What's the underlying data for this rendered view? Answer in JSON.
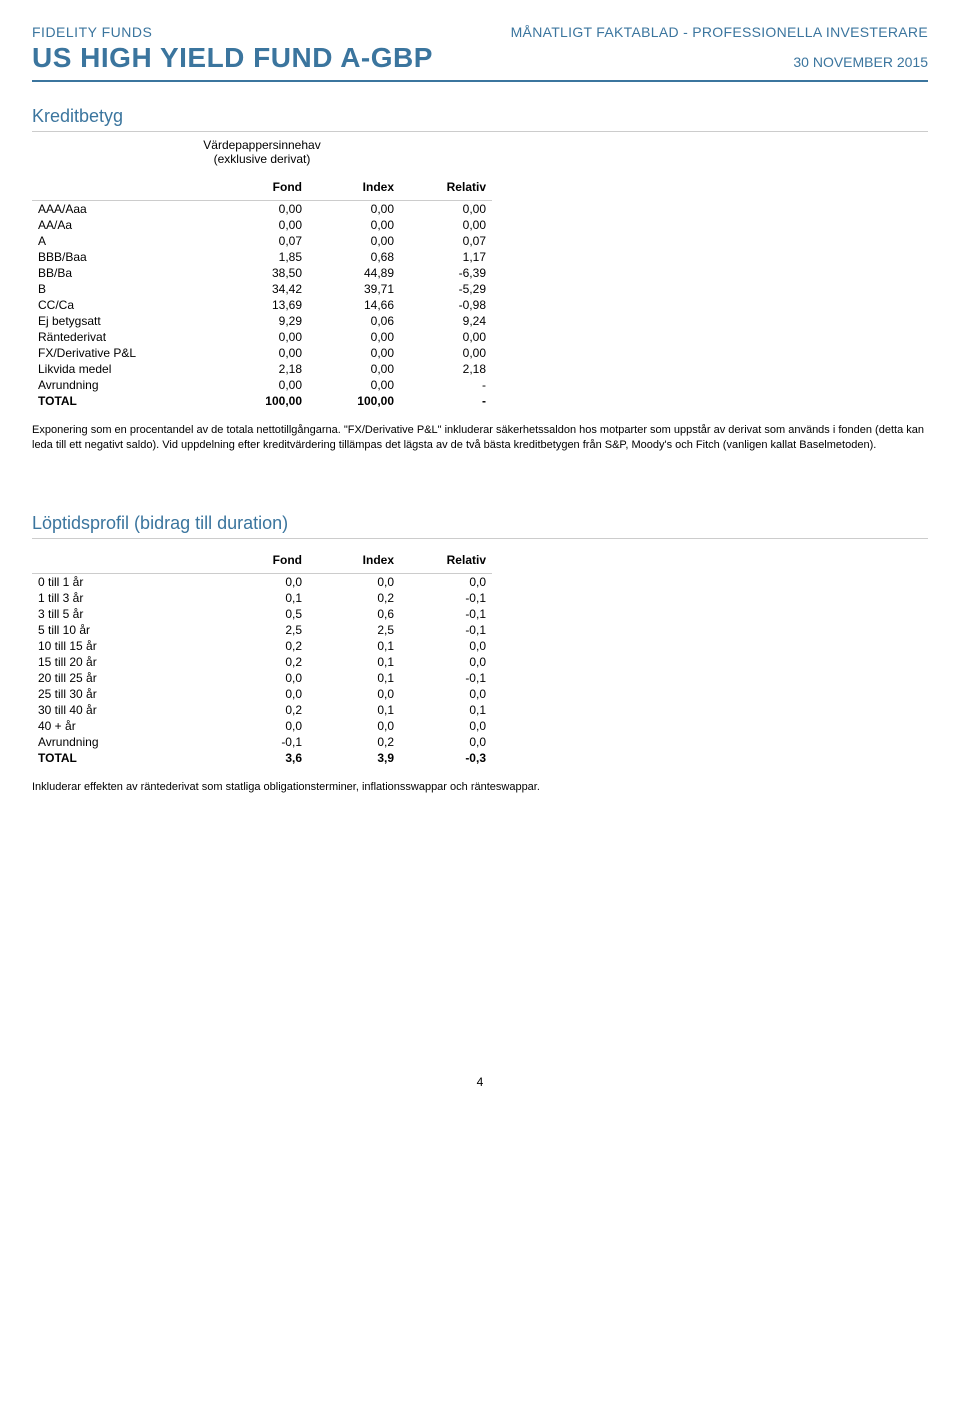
{
  "header": {
    "brand": "FIDELITY FUNDS",
    "doc_type": "MÅNATLIGT FAKTABLAD - PROFESSIONELLA INVESTERARE",
    "fund_name": "US HIGH YIELD FUND A-GBP",
    "date": "30 NOVEMBER 2015"
  },
  "credit": {
    "title": "Kreditbetyg",
    "subtitle_line1": "Värdepappersinnehav",
    "subtitle_line2": "(exklusive derivat)",
    "columns": [
      "",
      "Fond",
      "Index",
      "Relativ"
    ],
    "rows": [
      {
        "label": "AAA/Aaa",
        "fond": "0,00",
        "index": "0,00",
        "rel": "0,00"
      },
      {
        "label": "AA/Aa",
        "fond": "0,00",
        "index": "0,00",
        "rel": "0,00"
      },
      {
        "label": "A",
        "fond": "0,07",
        "index": "0,00",
        "rel": "0,07"
      },
      {
        "label": "BBB/Baa",
        "fond": "1,85",
        "index": "0,68",
        "rel": "1,17"
      },
      {
        "label": "BB/Ba",
        "fond": "38,50",
        "index": "44,89",
        "rel": "-6,39"
      },
      {
        "label": "B",
        "fond": "34,42",
        "index": "39,71",
        "rel": "-5,29"
      },
      {
        "label": "CC/Ca",
        "fond": "13,69",
        "index": "14,66",
        "rel": "-0,98"
      },
      {
        "label": "Ej betygsatt",
        "fond": "9,29",
        "index": "0,06",
        "rel": "9,24"
      },
      {
        "label": "Räntederivat",
        "fond": "0,00",
        "index": "0,00",
        "rel": "0,00"
      },
      {
        "label": "FX/Derivative P&L",
        "fond": "0,00",
        "index": "0,00",
        "rel": "0,00"
      },
      {
        "label": "Likvida medel",
        "fond": "2,18",
        "index": "0,00",
        "rel": "2,18"
      },
      {
        "label": "Avrundning",
        "fond": "0,00",
        "index": "0,00",
        "rel": "-"
      }
    ],
    "total": {
      "label": "TOTAL",
      "fond": "100,00",
      "index": "100,00",
      "rel": "-"
    },
    "footnote": "Exponering som en procentandel av de totala nettotillgångarna. \"FX/Derivative P&L\" inkluderar säkerhetssaldon hos motparter som uppstår av derivat som används i fonden (detta kan leda till ett negativt saldo). Vid uppdelning efter kreditvärdering tillämpas det lägsta av de två bästa kreditbetygen från S&P, Moody's och Fitch (vanligen kallat Baselmetoden)."
  },
  "maturity": {
    "title": "Löptidsprofil (bidrag till duration)",
    "columns": [
      "",
      "Fond",
      "Index",
      "Relativ"
    ],
    "rows": [
      {
        "label": "0 till 1 år",
        "fond": "0,0",
        "index": "0,0",
        "rel": "0,0"
      },
      {
        "label": "1 till 3 år",
        "fond": "0,1",
        "index": "0,2",
        "rel": "-0,1"
      },
      {
        "label": "3 till 5 år",
        "fond": "0,5",
        "index": "0,6",
        "rel": "-0,1"
      },
      {
        "label": "5 till 10 år",
        "fond": "2,5",
        "index": "2,5",
        "rel": "-0,1"
      },
      {
        "label": "10 till 15 år",
        "fond": "0,2",
        "index": "0,1",
        "rel": "0,0"
      },
      {
        "label": "15 till 20 år",
        "fond": "0,2",
        "index": "0,1",
        "rel": "0,0"
      },
      {
        "label": "20 till 25 år",
        "fond": "0,0",
        "index": "0,1",
        "rel": "-0,1"
      },
      {
        "label": "25 till 30 år",
        "fond": "0,0",
        "index": "0,0",
        "rel": "0,0"
      },
      {
        "label": "30 till 40 år",
        "fond": "0,2",
        "index": "0,1",
        "rel": "0,1"
      },
      {
        "label": "40 + år",
        "fond": "0,0",
        "index": "0,0",
        "rel": "0,0"
      },
      {
        "label": "Avrundning",
        "fond": "-0,1",
        "index": "0,2",
        "rel": "0,0"
      }
    ],
    "total": {
      "label": "TOTAL",
      "fond": "3,6",
      "index": "3,9",
      "rel": "-0,3"
    },
    "footnote": "Inkluderar effekten av räntederivat som statliga obligationsterminer, inflationsswappar och ränteswappar."
  },
  "page_number": "4",
  "colors": {
    "accent": "#3b759e",
    "text": "#000000",
    "border_light": "#cccccc",
    "background": "#ffffff"
  },
  "typography": {
    "body_fontsize_pt": 12,
    "title_fontsize_pt": 18,
    "fund_name_fontsize_pt": 28,
    "font_family": "Arial"
  }
}
